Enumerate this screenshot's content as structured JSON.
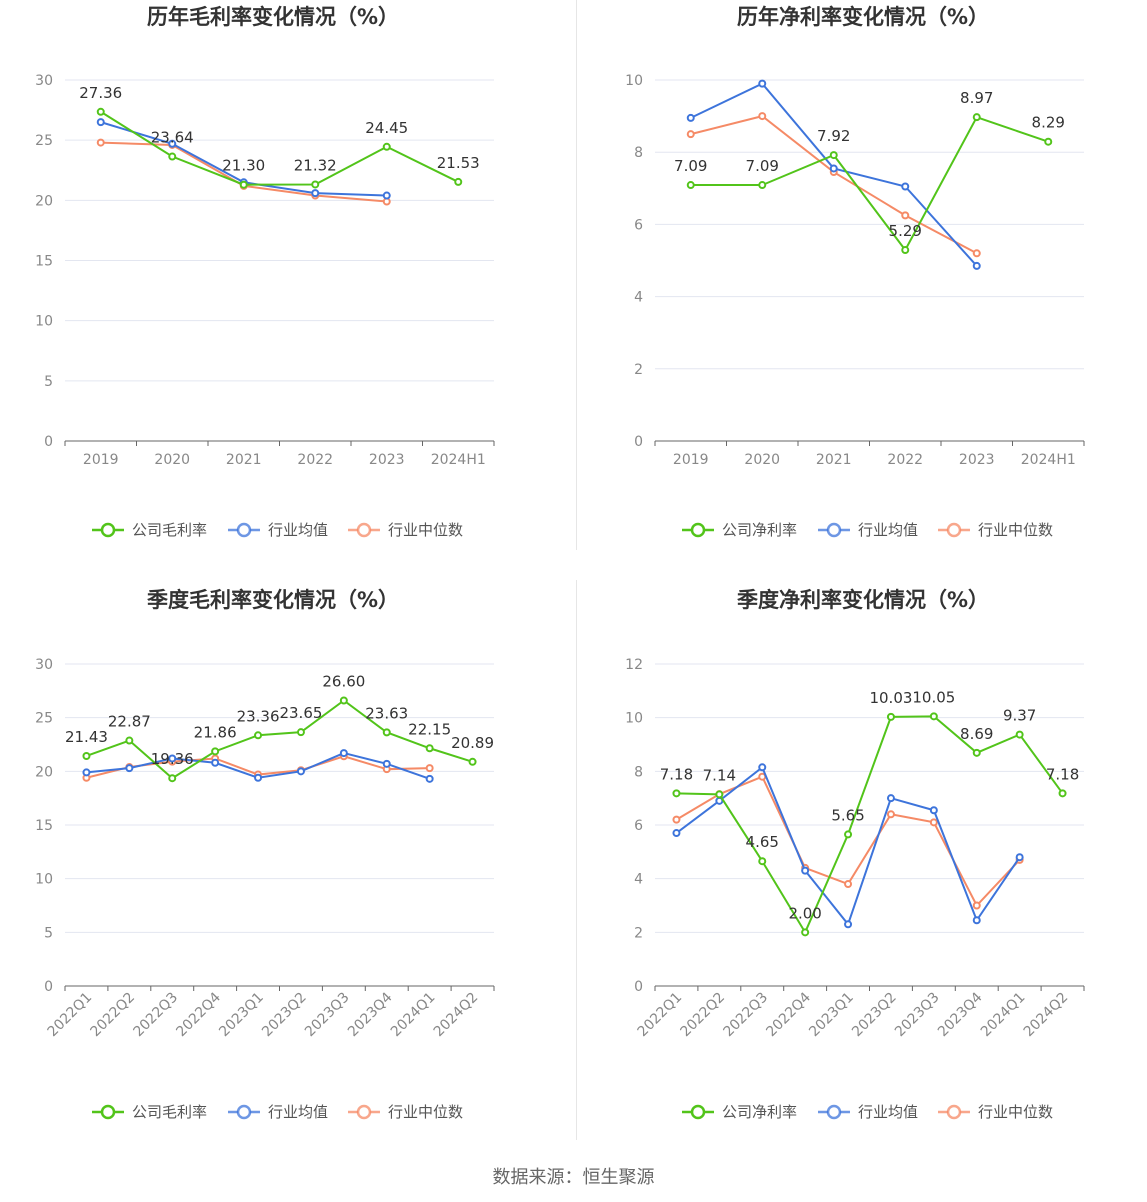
{
  "colors": {
    "company": "#52c41a",
    "avg": "#3d74db",
    "median": "#f58a66",
    "grid": "#e3e6f0",
    "axis": "#888888",
    "text": "#333333"
  },
  "legend_labels": {
    "gross": [
      "公司毛利率",
      "行业均值",
      "行业中位数"
    ],
    "net": [
      "公司净利率",
      "行业均值",
      "行业中位数"
    ]
  },
  "chart_data": [
    {
      "type": "line",
      "title": "历年毛利率变化情况（%）",
      "categories": [
        "2019",
        "2020",
        "2021",
        "2022",
        "2023",
        "2024H1"
      ],
      "ylim": [
        0,
        30
      ],
      "yticks": [
        0,
        5,
        10,
        15,
        20,
        25,
        30
      ],
      "grid": true,
      "legend_position": "bottom",
      "series": [
        {
          "name": "公司毛利率",
          "values": [
            27.36,
            23.64,
            21.3,
            21.32,
            24.45,
            21.53
          ],
          "labels": [
            "27.36",
            "23.64",
            "21.30",
            "21.32",
            "24.45",
            "21.53"
          ]
        },
        {
          "name": "行业均值",
          "values": [
            26.5,
            24.7,
            21.5,
            20.6,
            20.4,
            null
          ]
        },
        {
          "name": "行业中位数",
          "values": [
            24.8,
            24.6,
            21.2,
            20.4,
            19.9,
            null
          ]
        }
      ]
    },
    {
      "type": "line",
      "title": "历年净利率变化情况（%）",
      "categories": [
        "2019",
        "2020",
        "2021",
        "2022",
        "2023",
        "2024H1"
      ],
      "ylim": [
        0,
        10
      ],
      "yticks": [
        0,
        2,
        4,
        6,
        8,
        10
      ],
      "grid": true,
      "legend_position": "bottom",
      "series": [
        {
          "name": "公司净利率",
          "values": [
            7.09,
            7.09,
            7.92,
            5.29,
            8.97,
            8.29
          ],
          "labels": [
            "7.09",
            "7.09",
            "7.92",
            "5.29",
            "8.97",
            "8.29"
          ]
        },
        {
          "name": "行业均值",
          "values": [
            8.95,
            9.9,
            7.55,
            7.05,
            4.85,
            null
          ]
        },
        {
          "name": "行业中位数",
          "values": [
            8.5,
            9.0,
            7.45,
            6.25,
            5.2,
            null
          ]
        }
      ]
    },
    {
      "type": "line",
      "title": "季度毛利率变化情况（%）",
      "categories": [
        "2022Q1",
        "2022Q2",
        "2022Q3",
        "2022Q4",
        "2023Q1",
        "2023Q2",
        "2023Q3",
        "2023Q4",
        "2024Q1",
        "2024Q2"
      ],
      "ylim": [
        0,
        30
      ],
      "yticks": [
        0,
        5,
        10,
        15,
        20,
        25,
        30
      ],
      "grid": true,
      "legend_position": "bottom",
      "series": [
        {
          "name": "公司毛利率",
          "values": [
            21.43,
            22.87,
            19.36,
            21.86,
            23.36,
            23.65,
            26.6,
            23.63,
            22.15,
            20.89
          ],
          "labels": [
            "21.43",
            "22.87",
            "19.36",
            "21.86",
            "23.36",
            "23.65",
            "26.60",
            "23.63",
            "22.15",
            "20.89"
          ]
        },
        {
          "name": "行业均值",
          "values": [
            19.9,
            20.3,
            21.2,
            20.8,
            19.4,
            20.0,
            21.7,
            20.7,
            19.3,
            null
          ]
        },
        {
          "name": "行业中位数",
          "values": [
            19.4,
            20.4,
            20.9,
            21.2,
            19.7,
            20.1,
            21.4,
            20.2,
            20.3,
            null
          ]
        }
      ]
    },
    {
      "type": "line",
      "title": "季度净利率变化情况（%）",
      "categories": [
        "2022Q1",
        "2022Q2",
        "2022Q3",
        "2022Q4",
        "2023Q1",
        "2023Q2",
        "2023Q3",
        "2023Q4",
        "2024Q1",
        "2024Q2"
      ],
      "ylim": [
        0,
        12
      ],
      "yticks": [
        0,
        2,
        4,
        6,
        8,
        10,
        12
      ],
      "grid": true,
      "legend_position": "bottom",
      "series": [
        {
          "name": "公司净利率",
          "values": [
            7.18,
            7.14,
            4.65,
            2.0,
            5.65,
            10.03,
            10.05,
            8.69,
            9.37,
            7.18
          ],
          "labels": [
            "7.18",
            "7.14",
            "4.65",
            "2.00",
            "5.65",
            "10.03",
            "10.05",
            "8.69",
            "9.37",
            "7.18"
          ]
        },
        {
          "name": "行业均值",
          "values": [
            5.7,
            6.9,
            8.15,
            4.3,
            2.3,
            7.0,
            6.55,
            2.45,
            4.8,
            null
          ]
        },
        {
          "name": "行业中位数",
          "values": [
            6.2,
            7.15,
            7.8,
            4.4,
            3.8,
            6.4,
            6.1,
            3.0,
            4.7,
            null
          ]
        }
      ]
    }
  ],
  "source_label": "数据来源：恒生聚源"
}
